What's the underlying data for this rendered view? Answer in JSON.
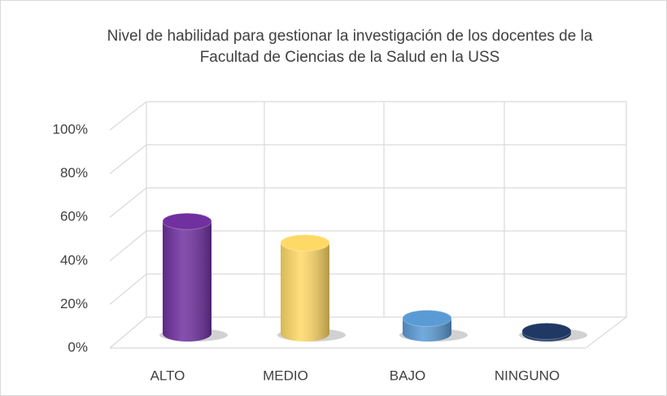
{
  "chart_data": {
    "type": "bar3d",
    "title": "Nivel de habilidad para gestionar la investigación de los docentes de la Facultad de Ciencias de la Salud en la USS",
    "categories": [
      "ALTO",
      "MEDIO",
      "BAJO",
      "NINGUNO"
    ],
    "values": [
      52,
      42,
      7,
      1
    ],
    "colors": [
      "#7030a0",
      "#ffd966",
      "#5b9bd5",
      "#1f3864"
    ],
    "ylim": [
      0,
      100
    ],
    "yticks": [
      {
        "value": 0,
        "label": "0%"
      },
      {
        "value": 20,
        "label": "20%"
      },
      {
        "value": 40,
        "label": "40%"
      },
      {
        "value": 60,
        "label": "60%"
      },
      {
        "value": 80,
        "label": "80%"
      },
      {
        "value": 100,
        "label": "100%"
      }
    ],
    "grid": true
  }
}
